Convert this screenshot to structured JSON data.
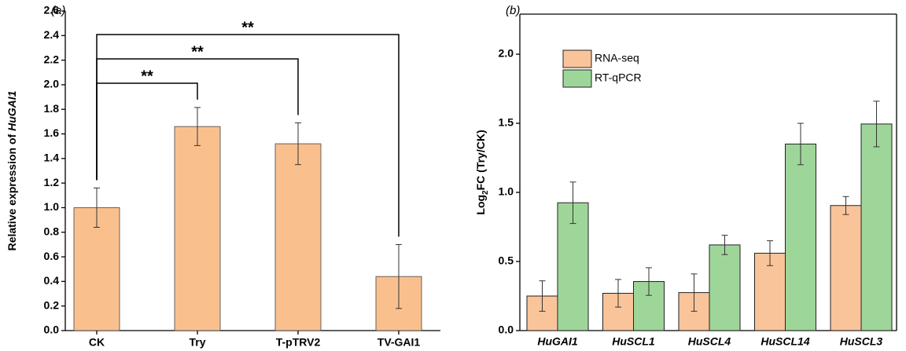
{
  "chart_data": [
    {
      "type": "bar",
      "panel_label": "(a)",
      "ylabel_parts": [
        "Relative expression of ",
        "HuGAI1"
      ],
      "categories": [
        "CK",
        "Try",
        "T-pTRV2",
        "TV-GAI1"
      ],
      "values": [
        1.0,
        1.66,
        1.52,
        0.44
      ],
      "errors": [
        0.16,
        0.155,
        0.17,
        0.26
      ],
      "color": "#f9c08e",
      "ylim": [
        0,
        2.6
      ],
      "yticks": [
        {
          "value": 0,
          "label": "0.0"
        },
        0.2,
        0.4,
        0.6,
        0.8,
        {
          "value": 1,
          "label": "1.0"
        },
        1.2,
        1.4,
        1.6,
        1.8,
        {
          "value": 2,
          "label": "2.0"
        },
        2.2,
        2.4,
        2.6
      ],
      "annotations": [
        {
          "text": "**",
          "between": [
            "CK",
            "Try"
          ]
        },
        {
          "text": "**",
          "between": [
            "CK",
            "T-pTRV2"
          ]
        },
        {
          "text": "**",
          "between": [
            "CK",
            "TV-GAI1"
          ]
        }
      ]
    },
    {
      "type": "grouped_bar",
      "panel_label": "(b)",
      "ylabel_parts": [
        "Log",
        "2",
        "FC (Try/CK)"
      ],
      "categories": [
        "HuGAI1",
        "HuSCL1",
        "HuSCL4",
        "HuSCL14",
        "HuSCL3"
      ],
      "series": [
        {
          "name": "RNA-seq",
          "color": "#f9c49a",
          "values": [
            0.25,
            0.27,
            0.275,
            0.56,
            0.905
          ],
          "errors": [
            0.11,
            0.1,
            0.135,
            0.09,
            0.065
          ]
        },
        {
          "name": "RT-qPCR",
          "color": "#9ed69a",
          "values": [
            0.925,
            0.355,
            0.62,
            1.35,
            1.495
          ],
          "errors": [
            0.15,
            0.1,
            0.07,
            0.15,
            0.165
          ]
        }
      ],
      "ylim": [
        0,
        2.29
      ],
      "yticks": [
        {
          "value": 0,
          "label": "0.0"
        },
        0.5,
        {
          "value": 1,
          "label": "1.0"
        },
        1.5,
        {
          "value": 2,
          "label": "2.0"
        }
      ],
      "legend": "upper left"
    }
  ]
}
